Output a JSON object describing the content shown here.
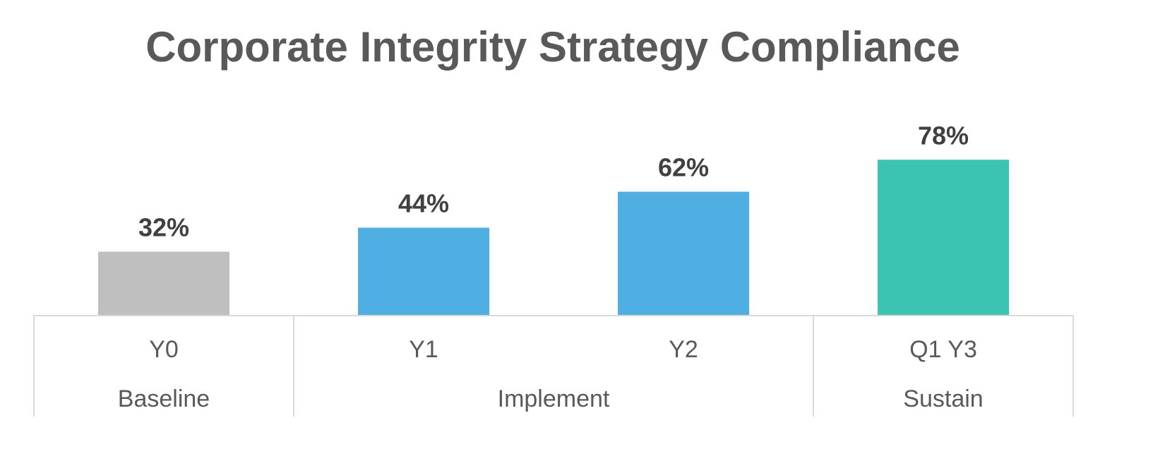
{
  "chart_data": {
    "type": "bar",
    "title": "Corporate Integrity Strategy Compliance",
    "categories": [
      "Y0",
      "Y1",
      "Y2",
      "Q1 Y3"
    ],
    "values": [
      32,
      44,
      62,
      78
    ],
    "value_labels": [
      "32%",
      "44%",
      "62%",
      "78%"
    ],
    "groups": [
      {
        "label": "Baseline",
        "categories": [
          "Y0"
        ]
      },
      {
        "label": "Implement",
        "categories": [
          "Y1",
          "Y2"
        ]
      },
      {
        "label": "Sustain",
        "categories": [
          "Q1 Y3"
        ]
      }
    ],
    "colors": [
      "#bfbfbf",
      "#4faee2",
      "#4faee2",
      "#3ac4b1"
    ],
    "ylim": [
      0,
      100
    ],
    "grid": false,
    "legend": "none"
  }
}
